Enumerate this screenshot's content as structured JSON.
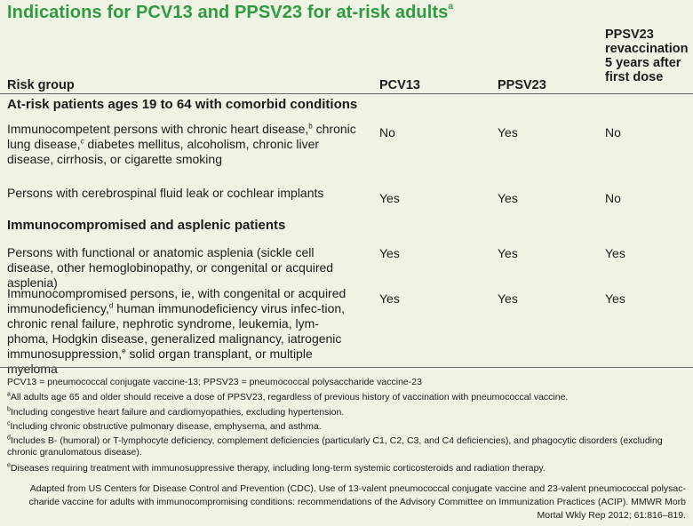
{
  "title": {
    "main": "Indications for PCV13 and PPSV23 for at-risk adults",
    "footnote_mark": "a"
  },
  "columns": {
    "risk_group": "Risk group",
    "pcv13": "PCV13",
    "ppsv23": "PPSV23",
    "revaccination": "PPSV23 revaccination 5 years after first dose"
  },
  "sections": [
    {
      "heading": "At-risk patients ages 19 to 64 with comorbid conditions",
      "rows": [
        {
          "parts": [
            "Immunocompetent persons with chronic heart disease,",
            "b",
            " chronic lung disease,",
            "c",
            " diabetes mellitus, alcoholism, chronic liver disease, cirrhosis, or cigarette smoking"
          ],
          "pcv13": "No",
          "ppsv23": "Yes",
          "revaccination": "No"
        },
        {
          "parts": [
            "Persons with cerebrospinal fluid leak or cochlear implants"
          ],
          "pcv13": "Yes",
          "ppsv23": "Yes",
          "revaccination": "No"
        }
      ]
    },
    {
      "heading": "Immunocompromised and asplenic patients",
      "rows": [
        {
          "parts": [
            "Persons with functional or anatomic asplenia (sickle cell disease, other hemoglobinopathy, or congenital or acquired asplenia)"
          ],
          "pcv13": "Yes",
          "ppsv23": "Yes",
          "revaccination": "Yes"
        },
        {
          "parts": [
            "Immunocompromised persons, ie, with congenital or acquired immunodeficiency,",
            "d",
            " human immunodeficiency virus infec-tion, chronic renal failure, nephrotic syndrome, leukemia, lym-phoma, Hodgkin disease, generalized malignancy, iatrogenic immunosuppression,",
            "e",
            " solid organ transplant, or multiple myeloma"
          ],
          "pcv13": "Yes",
          "ppsv23": "Yes",
          "revaccination": "Yes"
        }
      ]
    }
  ],
  "footnotes": [
    {
      "mark": "",
      "text": "PCV13 = pneumococcal conjugate vaccine-13; PPSV23 =  pneumococcal polysaccharide vaccine-23"
    },
    {
      "mark": "a",
      "text": "All adults age 65 and older should receive a dose of PPSV23, regardless of previous history of vaccination with pneumococcal vaccine."
    },
    {
      "mark": "b",
      "text": "Including congestive heart failure and cardiomyopathies, excluding hypertension."
    },
    {
      "mark": "c",
      "text": "Including chronic obstructive pulmonary disease, emphysema, and asthma."
    },
    {
      "mark": "d",
      "text": "Includes B- (humoral) or T-lymphocyte deficiency, complement deficiencies (particularly C1, C2, C3, and C4 deficiencies), and phagocytic disorders (excluding chronic granulomatous disease)."
    },
    {
      "mark": "e",
      "text": "Diseases requiring treatment with immunosuppressive therapy, including long-term systemic corticosteroids and radiation therapy."
    }
  ],
  "source": "Adapted from US Centers for Disease Control and Prevention (CDC). Use of 13-valent pneumococcal conjugate vaccine and 23-valent pneumococcal polysac-charide vaccine for adults with immunocompromising conditions: recommendations of the Advisory Committee on Immunization Practices (ACIP). MMWR Morb Mortal Wkly Rep 2012; 61:816–819.",
  "colors": {
    "title": "#2f9a3f",
    "background": "#eef3e3",
    "text": "#1c1c1c",
    "rule": "#6a6a6a"
  }
}
